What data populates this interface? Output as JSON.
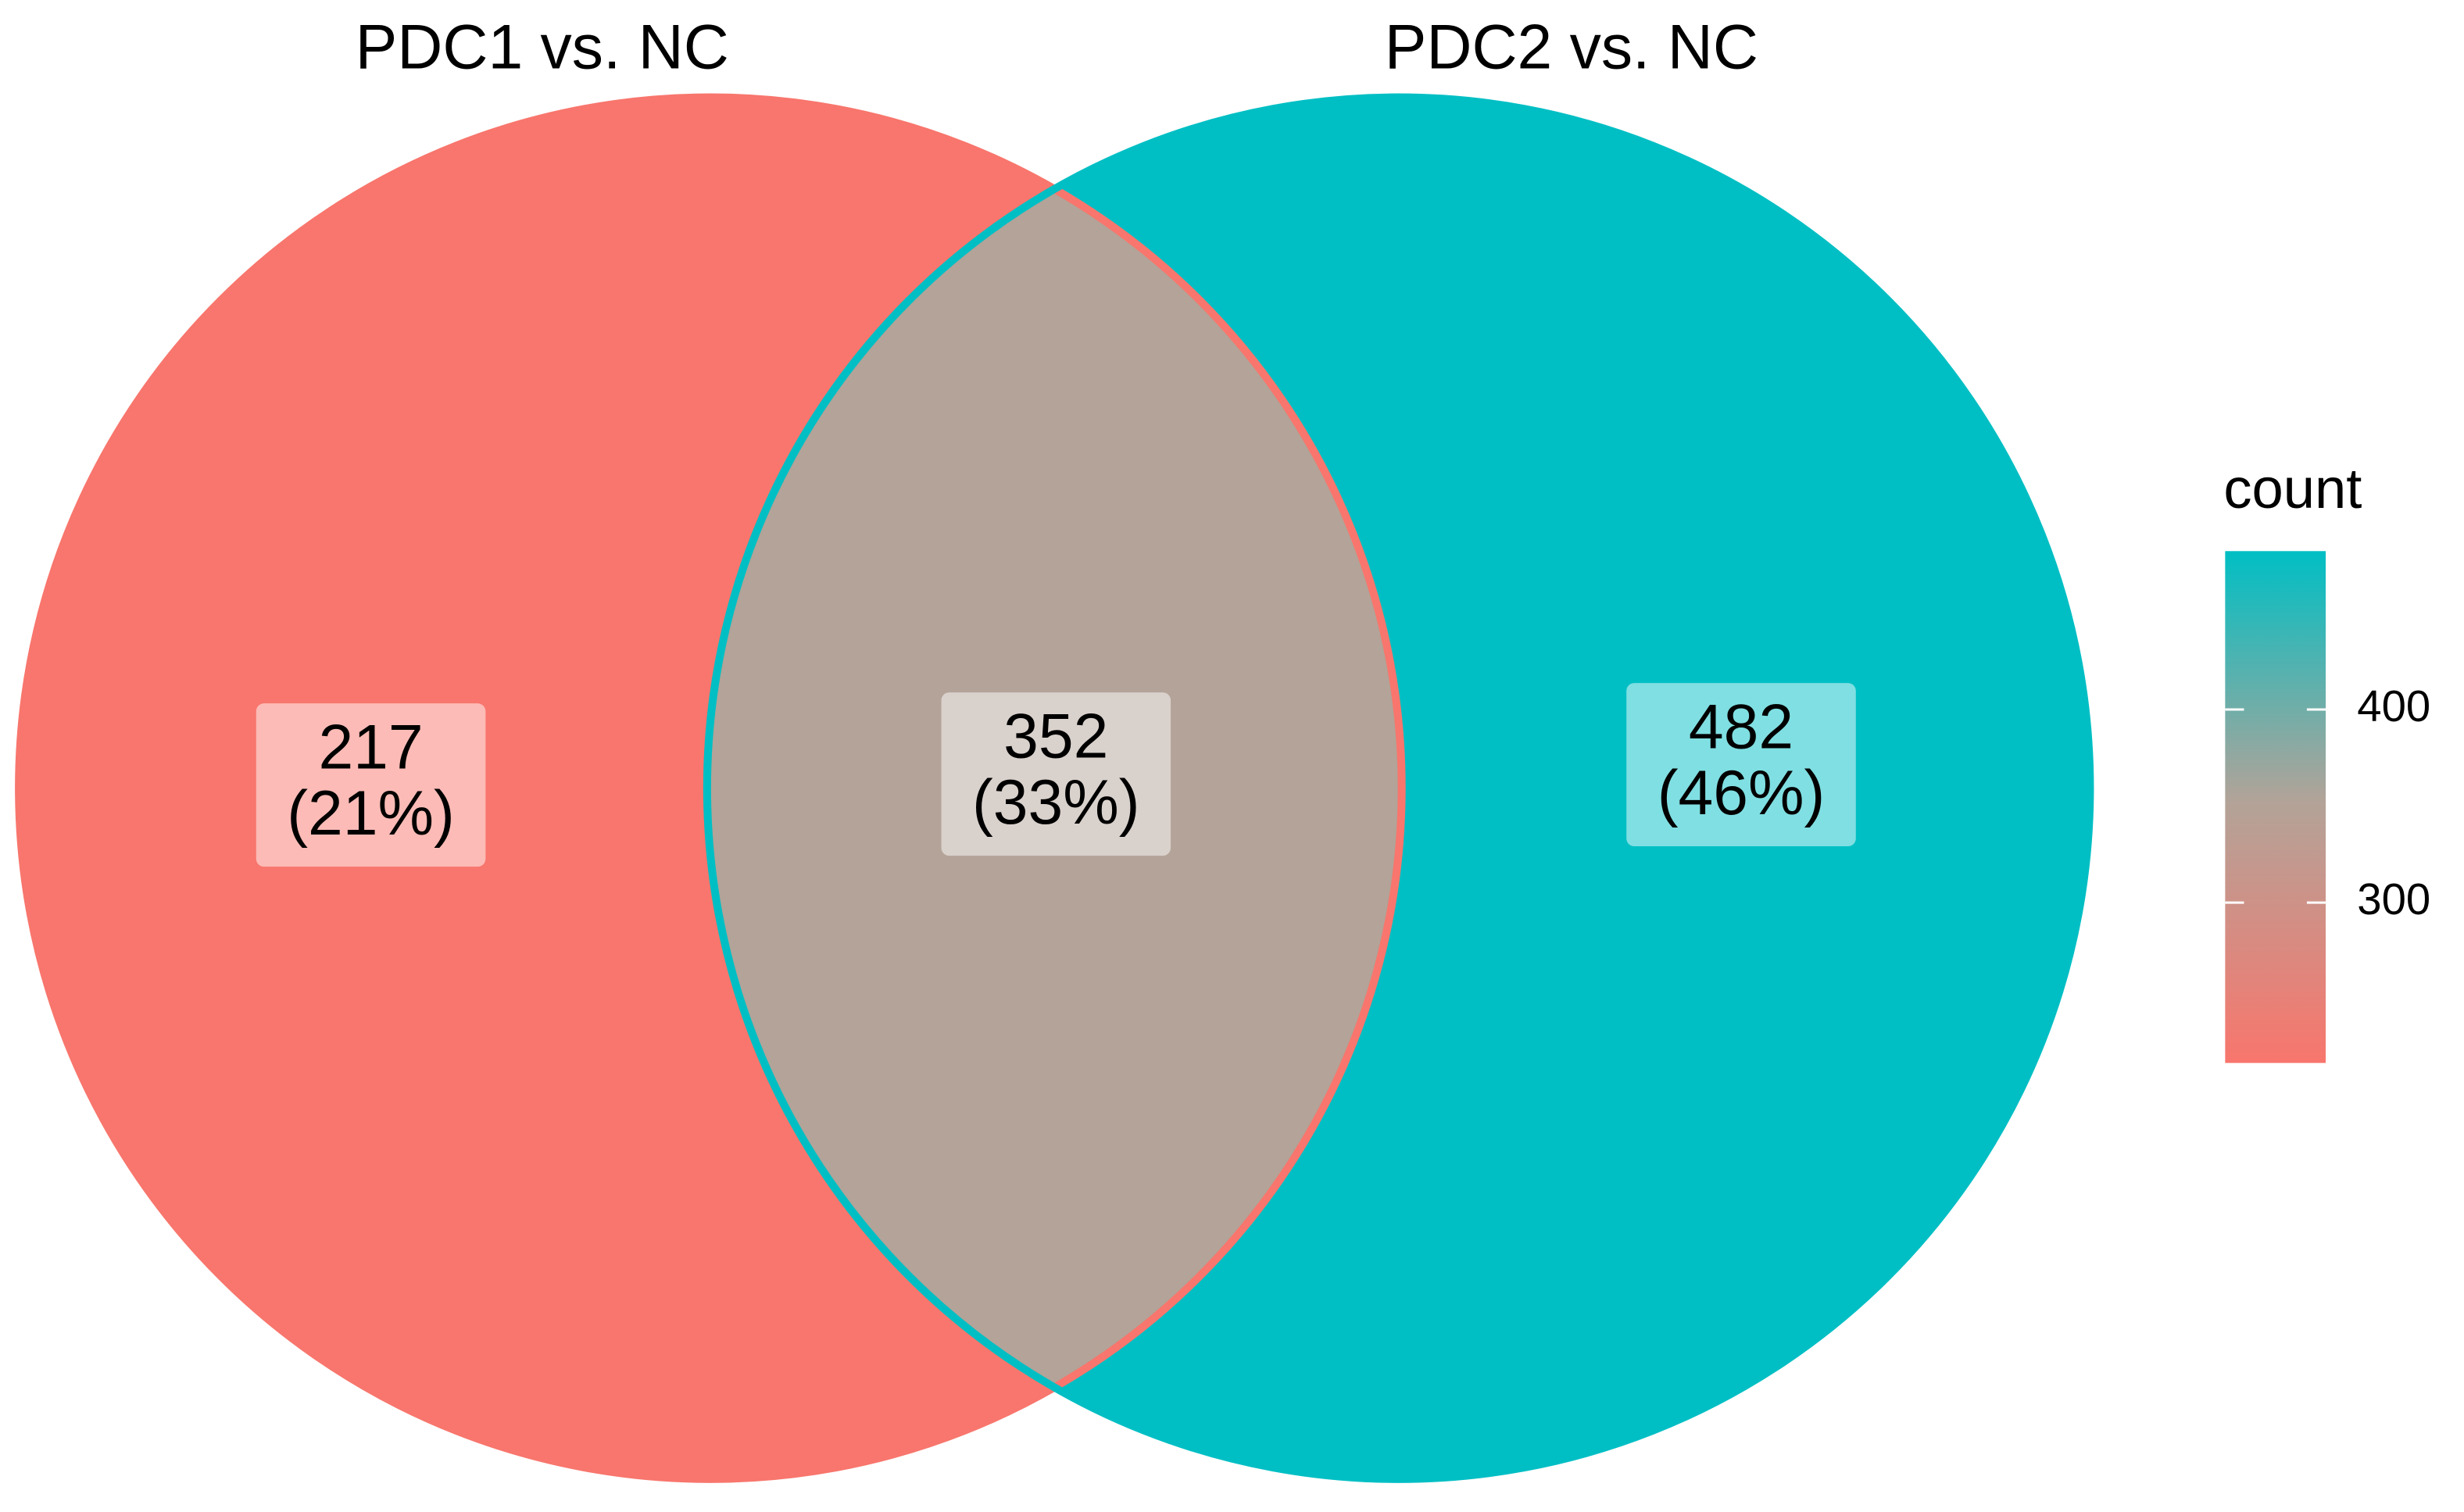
{
  "chart_data": {
    "type": "venn",
    "sets": [
      {
        "name": "PDC1 vs. NC",
        "color": "#F8766D"
      },
      {
        "name": "PDC2 vs. NC",
        "color": "#00BFC4"
      }
    ],
    "regions": {
      "values": [
        217,
        352,
        482
      ],
      "percentages": [
        21,
        33,
        46
      ],
      "percentage_labels": [
        "(21%)",
        "(33%)",
        "(46%)"
      ],
      "colors": [
        "#F8766D",
        "#B3A398",
        "#00BFC4"
      ]
    },
    "legend": {
      "title": "count",
      "lim": [
        217,
        482
      ],
      "ticks": [
        300,
        400
      ]
    }
  }
}
